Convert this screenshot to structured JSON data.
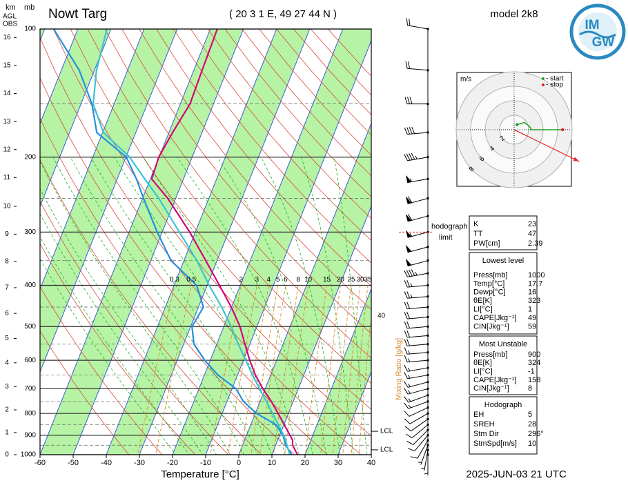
{
  "chart_data": {
    "type": "skewt",
    "title": "Nowt Targ",
    "subtitle": "( 20 3 1 E, 49 27 44 N )",
    "model": "model 2k8",
    "date": "2025-JUN-03",
    "time": "21 UTC",
    "xlabel": "Temperature [°C]",
    "ylabel": "mb",
    "height_label": [
      "km",
      "AGL",
      "OBS"
    ],
    "xlim": [
      -60,
      40
    ],
    "xticks": [
      -60,
      -50,
      -40,
      -30,
      -20,
      -10,
      0,
      10,
      20,
      30,
      40
    ],
    "ylim": [
      1000,
      100
    ],
    "yticks": [
      100,
      200,
      300,
      400,
      500,
      600,
      700,
      800,
      900,
      1000
    ],
    "log_y": true,
    "km_ticks": [
      0,
      1,
      2,
      3,
      4,
      5,
      6,
      7,
      8,
      9,
      10,
      11,
      12,
      13,
      14,
      15,
      16
    ],
    "pressure": [
      1000,
      950,
      925,
      900,
      850,
      800,
      750,
      700,
      650,
      600,
      550,
      500,
      450,
      400,
      350,
      300,
      250,
      225,
      200,
      175,
      150,
      125,
      100
    ],
    "series": [
      {
        "color": "#d4007a",
        "values": [
          17.7,
          15.1,
          14.5,
          13.1,
          10.1,
          6.9,
          3.4,
          -0.7,
          -4.6,
          -8.1,
          -11.5,
          -15.1,
          -20.1,
          -26.3,
          -33.4,
          -41.7,
          -52.4,
          -59.6,
          -60.1,
          -58.9,
          -57.1,
          -57.5,
          -57.9
        ]
      },
      {
        "color": "#2190e0",
        "values": [
          16.0,
          13.0,
          12.0,
          11.0,
          7.6,
          0.4,
          -5.0,
          -8.8,
          -15.9,
          -21.7,
          -26.9,
          -29.6,
          -28.5,
          -33.2,
          -43.9,
          -51.5,
          -59.7,
          -64.2,
          -69.9,
          -81.8,
          -86.7,
          -94.6,
          -107.3
        ]
      },
      {
        "color": "#38c4d2",
        "values": [
          15.4,
          13.4,
          12.4,
          11.2,
          8.3,
          5.2,
          1.9,
          -1.7,
          -5.5,
          -9.3,
          -13.5,
          -17.8,
          -23.0,
          -29.4,
          -36.1,
          -44.8,
          -55.1,
          -61.7,
          -68.9,
          -79.8,
          -86.3,
          -89.4,
          -91.2
        ]
      }
    ],
    "mixing_ratio": {
      "label": "Mixing Ratio [g/kg]",
      "color": "#e08a20",
      "values": [
        0.3,
        0.5,
        2,
        3,
        4,
        5,
        6,
        8,
        10,
        15,
        20,
        25,
        30,
        35,
        40
      ]
    },
    "lcl": [
      {
        "label": "LCL",
        "p": 974
      },
      {
        "label": "LCL",
        "p": 881
      }
    ],
    "hodograph_limit": {
      "label": [
        "hodograph",
        "limit"
      ],
      "p": 300
    },
    "winds": {
      "p": [
        100,
        125,
        150,
        175,
        200,
        225,
        250,
        275,
        300,
        325,
        350,
        375,
        400,
        425,
        450,
        475,
        500,
        525,
        550,
        575,
        600,
        625,
        650,
        675,
        700,
        725,
        750,
        775,
        800,
        825,
        850,
        875,
        900,
        925,
        950,
        975,
        1000
      ],
      "dir": [
        280,
        275,
        270,
        265,
        260,
        260,
        255,
        255,
        255,
        255,
        255,
        260,
        265,
        265,
        265,
        265,
        265,
        265,
        265,
        265,
        265,
        260,
        260,
        255,
        255,
        250,
        250,
        245,
        240,
        235,
        230,
        225,
        220,
        210,
        200,
        190,
        180
      ],
      "speed": [
        20,
        20,
        30,
        40,
        45,
        55,
        60,
        60,
        55,
        50,
        50,
        45,
        25,
        25,
        20,
        20,
        20,
        20,
        20,
        15,
        15,
        15,
        15,
        15,
        15,
        15,
        15,
        10,
        10,
        10,
        10,
        10,
        10,
        10,
        5,
        5,
        5
      ]
    }
  },
  "hodograph": {
    "unit": "m/s",
    "legend": [
      {
        "label": "- start",
        "color": "#20a020"
      },
      {
        "label": "- stop",
        "color": "#e02020"
      }
    ],
    "rings": [
      2,
      4,
      6,
      8
    ],
    "u": [
      0.4,
      1.4,
      2.1,
      2.4,
      4.3,
      6.7
    ],
    "v": [
      0.7,
      1.0,
      0.5,
      0.0,
      0.0,
      0.0
    ],
    "color": "#20a020"
  },
  "tables": [
    {
      "rows": [
        {
          "label": "K",
          "value": 23
        },
        {
          "label": "TT",
          "value": 47
        },
        {
          "label": "PW[cm]",
          "value": 2.39
        }
      ]
    },
    {
      "title": "Lowest level",
      "rows": [
        {
          "label": "Press[mb]",
          "value": 1000
        },
        {
          "label": "Temp[°C]",
          "value": 17.7
        },
        {
          "label": "Dewp[°C]",
          "value": 16
        },
        {
          "label": "θE[K]",
          "value": 323
        },
        {
          "label": "LI[°C]",
          "value": 1
        },
        {
          "label": "CAPE[Jkg⁻¹]",
          "value": 49
        },
        {
          "label": "CIN[Jkg⁻¹]",
          "value": 59
        }
      ]
    },
    {
      "title": "Most Unstable",
      "rows": [
        {
          "label": "Press[mb]",
          "value": 900
        },
        {
          "label": "θE[K]",
          "value": 324
        },
        {
          "label": "LI[°C]",
          "value": -1
        },
        {
          "label": "CAPE[Jkg⁻¹]",
          "value": 158
        },
        {
          "label": "CIN[Jkg⁻¹]",
          "value": 8
        }
      ]
    },
    {
      "title": "Hodograph",
      "rows": [
        {
          "label": "EH",
          "value": 5
        },
        {
          "label": "SREH",
          "value": 28
        },
        {
          "label": "Stm Dir",
          "value": 296,
          "value_label": "296°"
        },
        {
          "label": "StmSpd[m/s]",
          "value": 10
        }
      ]
    }
  ],
  "logo": [
    "IM",
    "GW"
  ]
}
